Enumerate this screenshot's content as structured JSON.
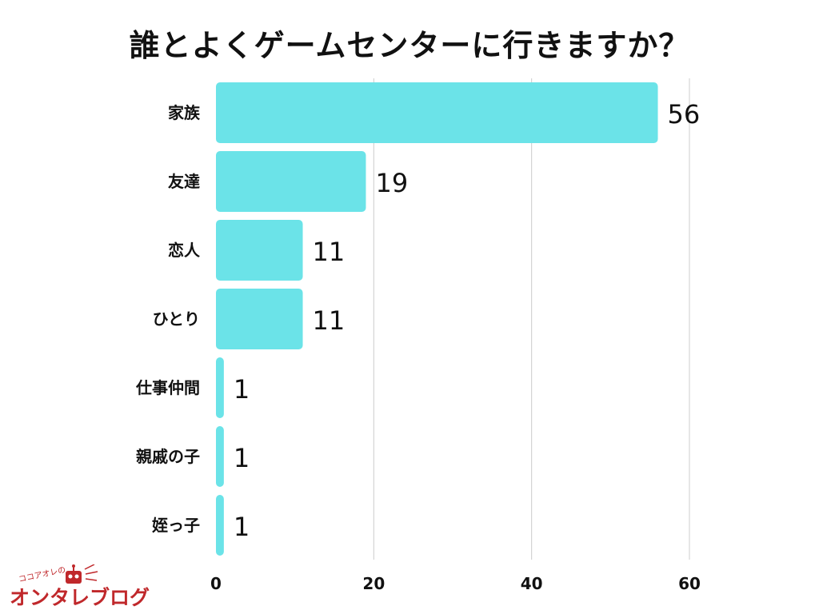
{
  "chart_data": {
    "type": "bar",
    "orientation": "horizontal",
    "title": "誰とよくゲームセンターに行きますか？",
    "categories": [
      "家族",
      "友達",
      "恋人",
      "ひとり",
      "仕事仲間",
      "親戚の子",
      "姪っ子"
    ],
    "values": [
      56,
      19,
      11,
      11,
      1,
      1,
      1
    ],
    "xlabel": "",
    "ylabel": "",
    "xlim": [
      0,
      60
    ],
    "xticks": [
      0,
      20,
      40,
      60
    ],
    "grid": true,
    "bar_color": "#6BE3E8",
    "grid_color": "#CCCCCC"
  },
  "logo": {
    "small_text": "ココアオレの",
    "main_text": "オンタレブログ",
    "color": "#C0282B"
  }
}
